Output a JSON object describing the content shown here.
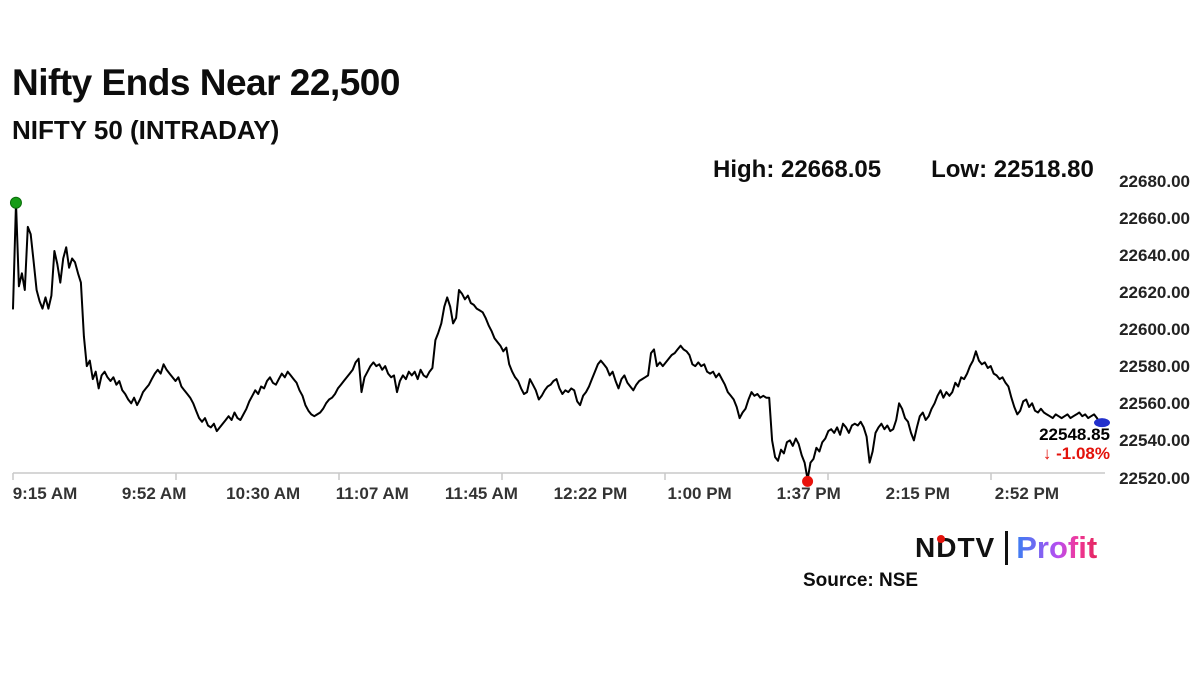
{
  "page": {
    "title": "Nifty Ends Near 22,500",
    "subtitle": "NIFTY 50 (INTRADAY)"
  },
  "header": {
    "high_label": "High:",
    "high_value": "22668.05",
    "low_label": "Low:",
    "low_value": "22518.80"
  },
  "annotation": {
    "last_price": "22548.85",
    "arrow": "↓",
    "change": "-1.08%"
  },
  "footer": {
    "source": "Source: NSE",
    "logo_ndtv": "NDTV",
    "logo_profit": "Profit"
  },
  "colors": {
    "line": "#000000",
    "open_marker": "#169c16",
    "low_marker": "#e8120b",
    "end_marker": "#2230cc",
    "axis": "#c8c8c8",
    "change_text": "#e3120b"
  },
  "chart_data": {
    "type": "line",
    "title": "NIFTY 50 (INTRADAY)",
    "high": 22668.05,
    "low": 22518.8,
    "last": 22548.85,
    "change_pct": -1.08,
    "ylim": [
      22520,
      22680
    ],
    "y_tick_labels": [
      "22680.00",
      "22660.00",
      "22640.00",
      "22620.00",
      "22600.00",
      "22580.00",
      "22560.00",
      "22540.00",
      "22520.00"
    ],
    "x_tick_labels": [
      "9:15 AM",
      "9:52 AM",
      "10:30 AM",
      "11:07 AM",
      "11:45 AM",
      "12:22 PM",
      "1:00 PM",
      "1:37 PM",
      "2:15 PM",
      "2:52 PM"
    ],
    "grid": false,
    "legend": false,
    "prices": [
      22611,
      22668,
      22623,
      22630,
      22621,
      22655,
      22651,
      22636,
      22621,
      22615,
      22611,
      22617,
      22611,
      22618,
      22642,
      22635,
      22625,
      22638,
      22644,
      22633,
      22638,
      22636,
      22630,
      22625,
      22596,
      22580,
      22583,
      22573,
      22577,
      22568,
      22575,
      22577,
      22574,
      22572,
      22574,
      22570,
      22572,
      22567,
      22565,
      22562,
      22560,
      22563,
      22559,
      22562,
      22566,
      22568,
      22570,
      22573,
      22576,
      22578,
      22576,
      22581,
      22578,
      22576,
      22574,
      22572,
      22574,
      22569,
      22567,
      22565,
      22563,
      22560,
      22556,
      22552,
      22550,
      22552,
      22548,
      22547,
      22549,
      22545,
      22547,
      22549,
      22551,
      22553,
      22551,
      22555,
      22552,
      22551,
      22554,
      22557,
      22561,
      22564,
      22567,
      22565,
      22569,
      22568,
      22572,
      22574,
      22571,
      22570,
      22573,
      22576,
      22574,
      22577,
      22575,
      22573,
      22571,
      22567,
      22564,
      22559,
      22556,
      22554,
      22553,
      22554,
      22555,
      22557,
      22560,
      22562,
      22563,
      22565,
      22568,
      22570,
      22572,
      22574,
      22576,
      22578,
      22582,
      22584,
      22566,
      22574,
      22577,
      22580,
      22582,
      22580,
      22581,
      22578,
      22580,
      22576,
      22574,
      22575,
      22566,
      22572,
      22575,
      22573,
      22577,
      22575,
      22577,
      22573,
      22578,
      22575,
      22574,
      22577,
      22579,
      22594,
      22598,
      22603,
      22612,
      22617,
      22612,
      22603,
      22606,
      22621,
      22619,
      22616,
      22618,
      22614,
      22613,
      22611,
      22610,
      22609,
      22606,
      22602,
      22599,
      22595,
      22593,
      22591,
      22588,
      22590,
      22581,
      22577,
      22574,
      22572,
      22568,
      22565,
      22566,
      22573,
      22570,
      22567,
      22562,
      22564,
      22567,
      22569,
      22570,
      22572,
      22573,
      22568,
      22565,
      22567,
      22566,
      22568,
      22567,
      22561,
      22559,
      22564,
      22566,
      22569,
      22573,
      22577,
      22581,
      22583,
      22581,
      22579,
      22575,
      22577,
      22572,
      22568,
      22573,
      22575,
      22571,
      22569,
      22567,
      22570,
      22572,
      22573,
      22574,
      22575,
      22587,
      22589,
      22580,
      22582,
      22580,
      22582,
      22584,
      22586,
      22587,
      22589,
      22591,
      22589,
      22588,
      22586,
      22581,
      22580,
      22582,
      22580,
      22581,
      22577,
      22576,
      22577,
      22574,
      22576,
      22573,
      22570,
      22566,
      22564,
      22562,
      22558,
      22552,
      22555,
      22557,
      22562,
      22566,
      22564,
      22565,
      22563,
      22564,
      22563,
      22563,
      22540,
      22531,
      22529,
      22535,
      22533,
      22539,
      22540,
      22537,
      22541,
      22538,
      22532,
      22528,
      22519,
      22528,
      22530,
      22536,
      22534,
      22539,
      22541,
      22545,
      22546,
      22544,
      22547,
      22543,
      22549,
      22547,
      22544,
      22548,
      22549,
      22548,
      22550,
      22547,
      22542,
      22528,
      22534,
      22544,
      22547,
      22549,
      22546,
      22548,
      22545,
      22546,
      22551,
      22560,
      22557,
      22552,
      22550,
      22544,
      22540,
      22547,
      22553,
      22555,
      22551,
      22553,
      22557,
      22560,
      22564,
      22567,
      22563,
      22566,
      22564,
      22566,
      22571,
      22569,
      22574,
      22573,
      22576,
      22580,
      22583,
      22588,
      22583,
      22581,
      22582,
      22579,
      22580,
      22576,
      22575,
      22573,
      22574,
      22571,
      22569,
      22563,
      22558,
      22554,
      22556,
      22561,
      22562,
      22558,
      22560,
      22556,
      22555,
      22557,
      22555,
      22554,
      22553,
      22552,
      22554,
      22553,
      22552,
      22553,
      22554,
      22552,
      22553,
      22554,
      22555,
      22553,
      22554,
      22552,
      22553,
      22554,
      22552,
      22549
    ]
  }
}
